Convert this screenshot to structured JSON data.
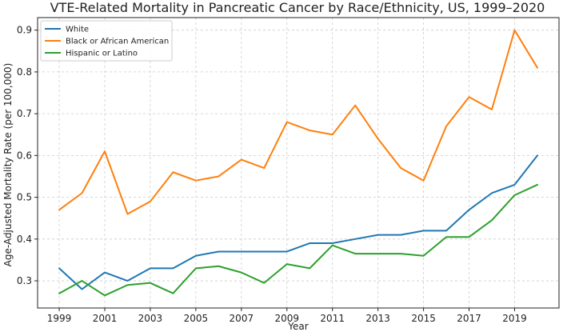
{
  "chart_data": {
    "type": "line",
    "title": "VTE-Related Mortality in Pancreatic Cancer by Race/Ethnicity, US, 1999–2020",
    "xlabel": "Year",
    "ylabel": "Age-Adjusted Mortality Rate (per 100,000)",
    "x": [
      1999,
      2000,
      2001,
      2002,
      2003,
      2004,
      2005,
      2006,
      2007,
      2008,
      2009,
      2010,
      2011,
      2012,
      2013,
      2014,
      2015,
      2016,
      2017,
      2018,
      2019,
      2020
    ],
    "xticks": [
      1999,
      2001,
      2003,
      2005,
      2007,
      2009,
      2011,
      2013,
      2015,
      2017,
      2019
    ],
    "xlim": [
      1998.05,
      2020.95
    ],
    "ylim": [
      0.235,
      0.93
    ],
    "yticks": [
      0.3,
      0.4,
      0.5,
      0.6,
      0.7,
      0.8,
      0.9
    ],
    "ytick_labels": [
      "0.3",
      "0.4",
      "0.5",
      "0.6",
      "0.7",
      "0.8",
      "0.9"
    ],
    "grid": true,
    "legend_position": "top-left",
    "series": [
      {
        "name": "White",
        "color": "#1f77b4",
        "values": [
          0.33,
          0.28,
          0.32,
          0.3,
          0.33,
          0.33,
          0.36,
          0.37,
          0.37,
          0.37,
          0.37,
          0.39,
          0.39,
          0.4,
          0.41,
          0.41,
          0.42,
          0.42,
          0.47,
          0.51,
          0.53,
          0.6
        ]
      },
      {
        "name": "Black or African American",
        "color": "#ff7f0e",
        "values": [
          0.47,
          0.51,
          0.61,
          0.46,
          0.49,
          0.56,
          0.54,
          0.55,
          0.59,
          0.57,
          0.68,
          0.66,
          0.65,
          0.72,
          0.64,
          0.57,
          0.54,
          0.67,
          0.74,
          0.71,
          0.9,
          0.81
        ]
      },
      {
        "name": "Hispanic or Latino",
        "color": "#2ca02c",
        "values": [
          0.27,
          0.3,
          0.265,
          0.29,
          0.295,
          0.27,
          0.33,
          0.335,
          0.32,
          0.295,
          0.34,
          0.33,
          0.385,
          0.365,
          0.365,
          0.365,
          0.36,
          0.405,
          0.405,
          0.445,
          0.505,
          0.53
        ]
      }
    ]
  }
}
